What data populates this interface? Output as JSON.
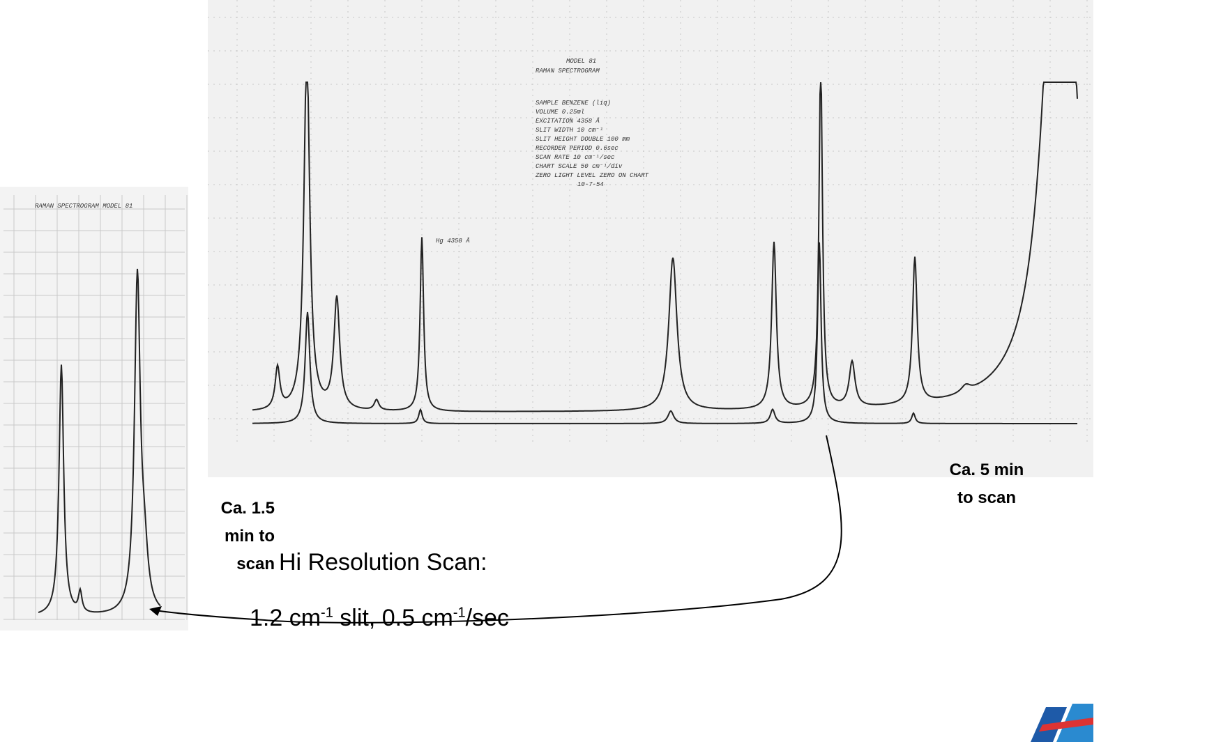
{
  "large_scan": {
    "title_lines": [
      "MODEL 81",
      "RAMAN SPECTROGRAM"
    ],
    "details": [
      "SAMPLE BENZENE (liq)",
      "VOLUME 0.25ml",
      "EXCITATION 4358 Å",
      "SLIT WIDTH 10 cm⁻¹",
      "SLIT HEIGHT DOUBLE 100 mm",
      "RECORDER PERIOD 0.6sec",
      "SCAN RATE 10 cm⁻¹/sec",
      "CHART SCALE 50 cm⁻¹/div",
      "ZERO LIGHT LEVEL ZERO ON CHART",
      "10-7-54"
    ],
    "line_label": "Hg 4358 Å",
    "caption": [
      "Ca. 5 min",
      "to scan"
    ]
  },
  "small_scan": {
    "title": "RAMAN SPECTROGRAM MODEL 81",
    "caption": [
      "Ca. 1.5",
      "min to",
      "scan"
    ]
  },
  "note": {
    "heading": "Hi Resolution Scan:",
    "detail": [
      "1.2 cm",
      "-1",
      " slit, 0.5 cm",
      "-1",
      "/sec"
    ]
  }
}
